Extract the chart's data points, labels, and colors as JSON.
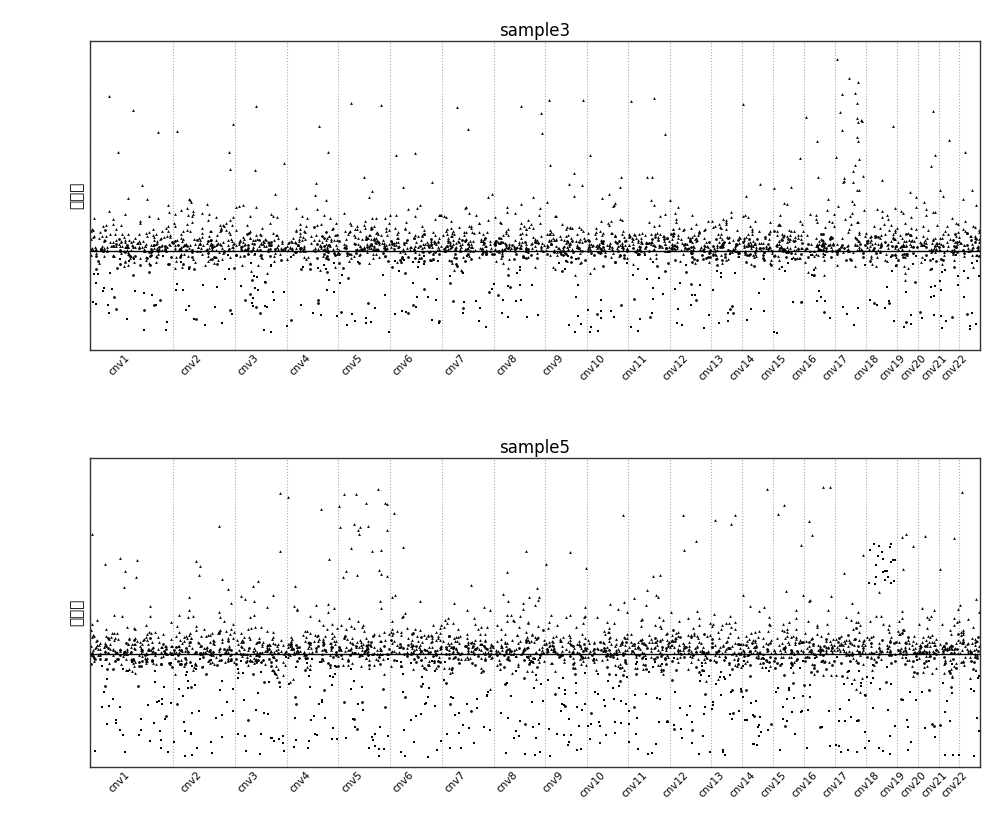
{
  "title1": "sample3",
  "title2": "sample5",
  "ylabel": "拷贝数",
  "chromosomes": [
    "cnv1",
    "cnv2",
    "cnv3",
    "cnv4",
    "cnv5",
    "cnv6",
    "cnv7",
    "cnv8",
    "cnv9",
    "cnv10",
    "cnv11",
    "cnv12",
    "cnv13",
    "cnv14",
    "cnv15",
    "cnv16",
    "cnv17",
    "cnv18",
    "cnv19",
    "cnv20",
    "cnv21",
    "cnv22"
  ],
  "chr_widths": [
    8,
    6,
    5,
    5,
    5,
    5,
    5,
    5,
    4,
    4,
    4,
    4,
    3,
    3,
    3,
    3,
    3,
    3,
    2,
    2,
    2,
    2
  ],
  "baseline": 0.0,
  "ylim1": [
    -1.8,
    3.8
  ],
  "ylim2": [
    -2.2,
    3.8
  ],
  "background_color": "#ffffff",
  "facecolor": "#ffffff",
  "dot_color": "#000000",
  "vline_color": "#aaaaaa",
  "hline_color": "#000000",
  "figsize": [
    10.0,
    8.25
  ],
  "dpi": 100
}
